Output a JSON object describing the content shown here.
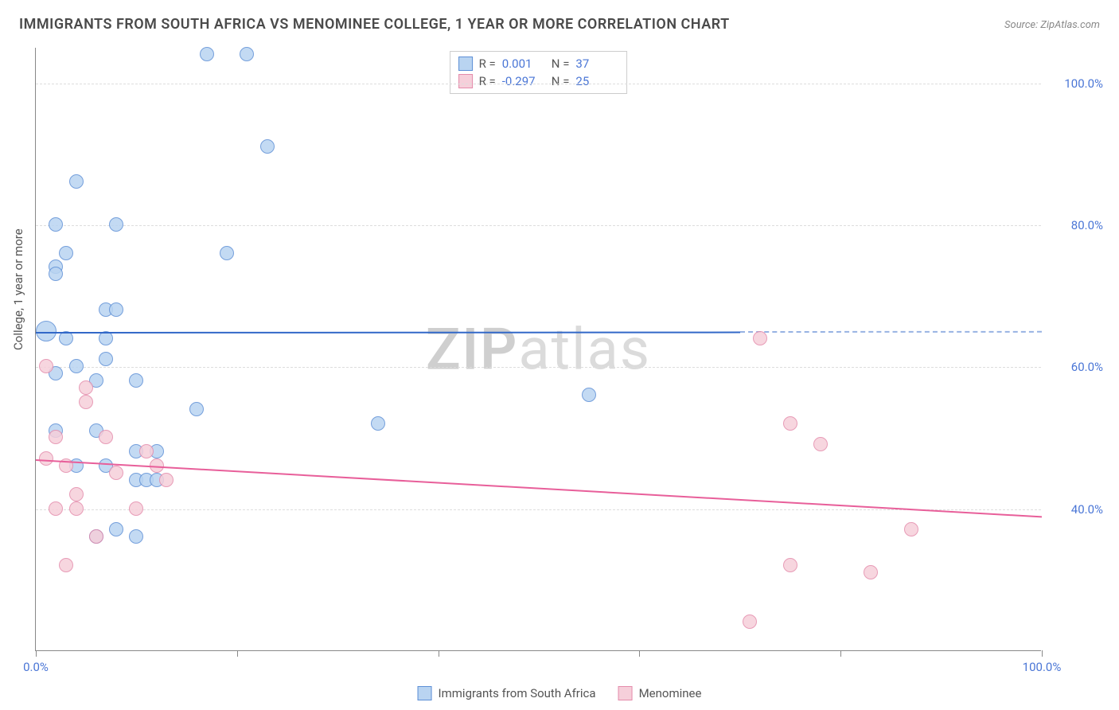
{
  "title": "IMMIGRANTS FROM SOUTH AFRICA VS MENOMINEE COLLEGE, 1 YEAR OR MORE CORRELATION CHART",
  "source": "Source: ZipAtlas.com",
  "y_axis_title": "College, 1 year or more",
  "watermark": {
    "left": "ZIP",
    "right": "atlas"
  },
  "chart": {
    "type": "scatter",
    "background_color": "#ffffff",
    "grid_color": "#dddddd",
    "axis_color": "#888888",
    "xlim": [
      0,
      100
    ],
    "ylim": [
      20,
      105
    ],
    "x_ticks": [
      0,
      20,
      40,
      60,
      80,
      100
    ],
    "x_tick_labels": [
      "0.0%",
      "",
      "",
      "",
      "",
      "100.0%"
    ],
    "y_ticks": [
      40,
      60,
      80,
      100
    ],
    "y_tick_labels": [
      "40.0%",
      "60.0%",
      "80.0%",
      "100.0%"
    ],
    "label_color": "#4a76d6",
    "label_fontsize": 15,
    "title_fontsize": 18,
    "point_radius": 9,
    "series": [
      {
        "name": "Immigrants from South Africa",
        "fill": "#b9d4f1",
        "stroke": "#5d8fd6",
        "r_value": "0.001",
        "n_value": "37",
        "regression": {
          "x0": 0,
          "y0": 65,
          "x1": 70,
          "y1": 65.05,
          "solid_end_x": 70,
          "color": "#3268c8"
        },
        "points": [
          {
            "x": 17,
            "y": 104,
            "r": 9
          },
          {
            "x": 21,
            "y": 104,
            "r": 9
          },
          {
            "x": 23,
            "y": 91,
            "r": 9
          },
          {
            "x": 4,
            "y": 86,
            "r": 9
          },
          {
            "x": 2,
            "y": 80,
            "r": 9
          },
          {
            "x": 8,
            "y": 80,
            "r": 9
          },
          {
            "x": 3,
            "y": 76,
            "r": 9
          },
          {
            "x": 2,
            "y": 74,
            "r": 9
          },
          {
            "x": 19,
            "y": 76,
            "r": 9
          },
          {
            "x": 2,
            "y": 73,
            "r": 9
          },
          {
            "x": 7,
            "y": 68,
            "r": 9
          },
          {
            "x": 8,
            "y": 68,
            "r": 9
          },
          {
            "x": 1,
            "y": 65,
            "r": 13
          },
          {
            "x": 3,
            "y": 64,
            "r": 9
          },
          {
            "x": 7,
            "y": 64,
            "r": 9
          },
          {
            "x": 4,
            "y": 60,
            "r": 9
          },
          {
            "x": 7,
            "y": 61,
            "r": 9
          },
          {
            "x": 2,
            "y": 59,
            "r": 9
          },
          {
            "x": 6,
            "y": 58,
            "r": 9
          },
          {
            "x": 10,
            "y": 58,
            "r": 9
          },
          {
            "x": 55,
            "y": 56,
            "r": 9
          },
          {
            "x": 16,
            "y": 54,
            "r": 9
          },
          {
            "x": 2,
            "y": 51,
            "r": 9
          },
          {
            "x": 6,
            "y": 51,
            "r": 9
          },
          {
            "x": 34,
            "y": 52,
            "r": 9
          },
          {
            "x": 10,
            "y": 48,
            "r": 9
          },
          {
            "x": 12,
            "y": 48,
            "r": 9
          },
          {
            "x": 4,
            "y": 46,
            "r": 9
          },
          {
            "x": 7,
            "y": 46,
            "r": 9
          },
          {
            "x": 10,
            "y": 44,
            "r": 9
          },
          {
            "x": 11,
            "y": 44,
            "r": 9
          },
          {
            "x": 12,
            "y": 44,
            "r": 9
          },
          {
            "x": 6,
            "y": 36,
            "r": 9
          },
          {
            "x": 8,
            "y": 37,
            "r": 9
          },
          {
            "x": 10,
            "y": 36,
            "r": 9
          }
        ]
      },
      {
        "name": "Menominee",
        "fill": "#f6cfda",
        "stroke": "#e48bab",
        "r_value": "-0.297",
        "n_value": "25",
        "regression": {
          "x0": 0,
          "y0": 47,
          "x1": 100,
          "y1": 39,
          "color": "#e85f9a"
        },
        "points": [
          {
            "x": 72,
            "y": 64,
            "r": 9
          },
          {
            "x": 1,
            "y": 60,
            "r": 9
          },
          {
            "x": 5,
            "y": 57,
            "r": 9
          },
          {
            "x": 5,
            "y": 55,
            "r": 9
          },
          {
            "x": 75,
            "y": 52,
            "r": 9
          },
          {
            "x": 2,
            "y": 50,
            "r": 9
          },
          {
            "x": 7,
            "y": 50,
            "r": 9
          },
          {
            "x": 78,
            "y": 49,
            "r": 9
          },
          {
            "x": 11,
            "y": 48,
            "r": 9
          },
          {
            "x": 1,
            "y": 47,
            "r": 9
          },
          {
            "x": 3,
            "y": 46,
            "r": 9
          },
          {
            "x": 8,
            "y": 45,
            "r": 9
          },
          {
            "x": 12,
            "y": 46,
            "r": 9
          },
          {
            "x": 13,
            "y": 44,
            "r": 9
          },
          {
            "x": 4,
            "y": 42,
            "r": 9
          },
          {
            "x": 2,
            "y": 40,
            "r": 9
          },
          {
            "x": 4,
            "y": 40,
            "r": 9
          },
          {
            "x": 10,
            "y": 40,
            "r": 9
          },
          {
            "x": 87,
            "y": 37,
            "r": 9
          },
          {
            "x": 6,
            "y": 36,
            "r": 9
          },
          {
            "x": 3,
            "y": 32,
            "r": 9
          },
          {
            "x": 75,
            "y": 32,
            "r": 9
          },
          {
            "x": 83,
            "y": 31,
            "r": 9
          },
          {
            "x": 71,
            "y": 24,
            "r": 9
          }
        ]
      }
    ]
  }
}
